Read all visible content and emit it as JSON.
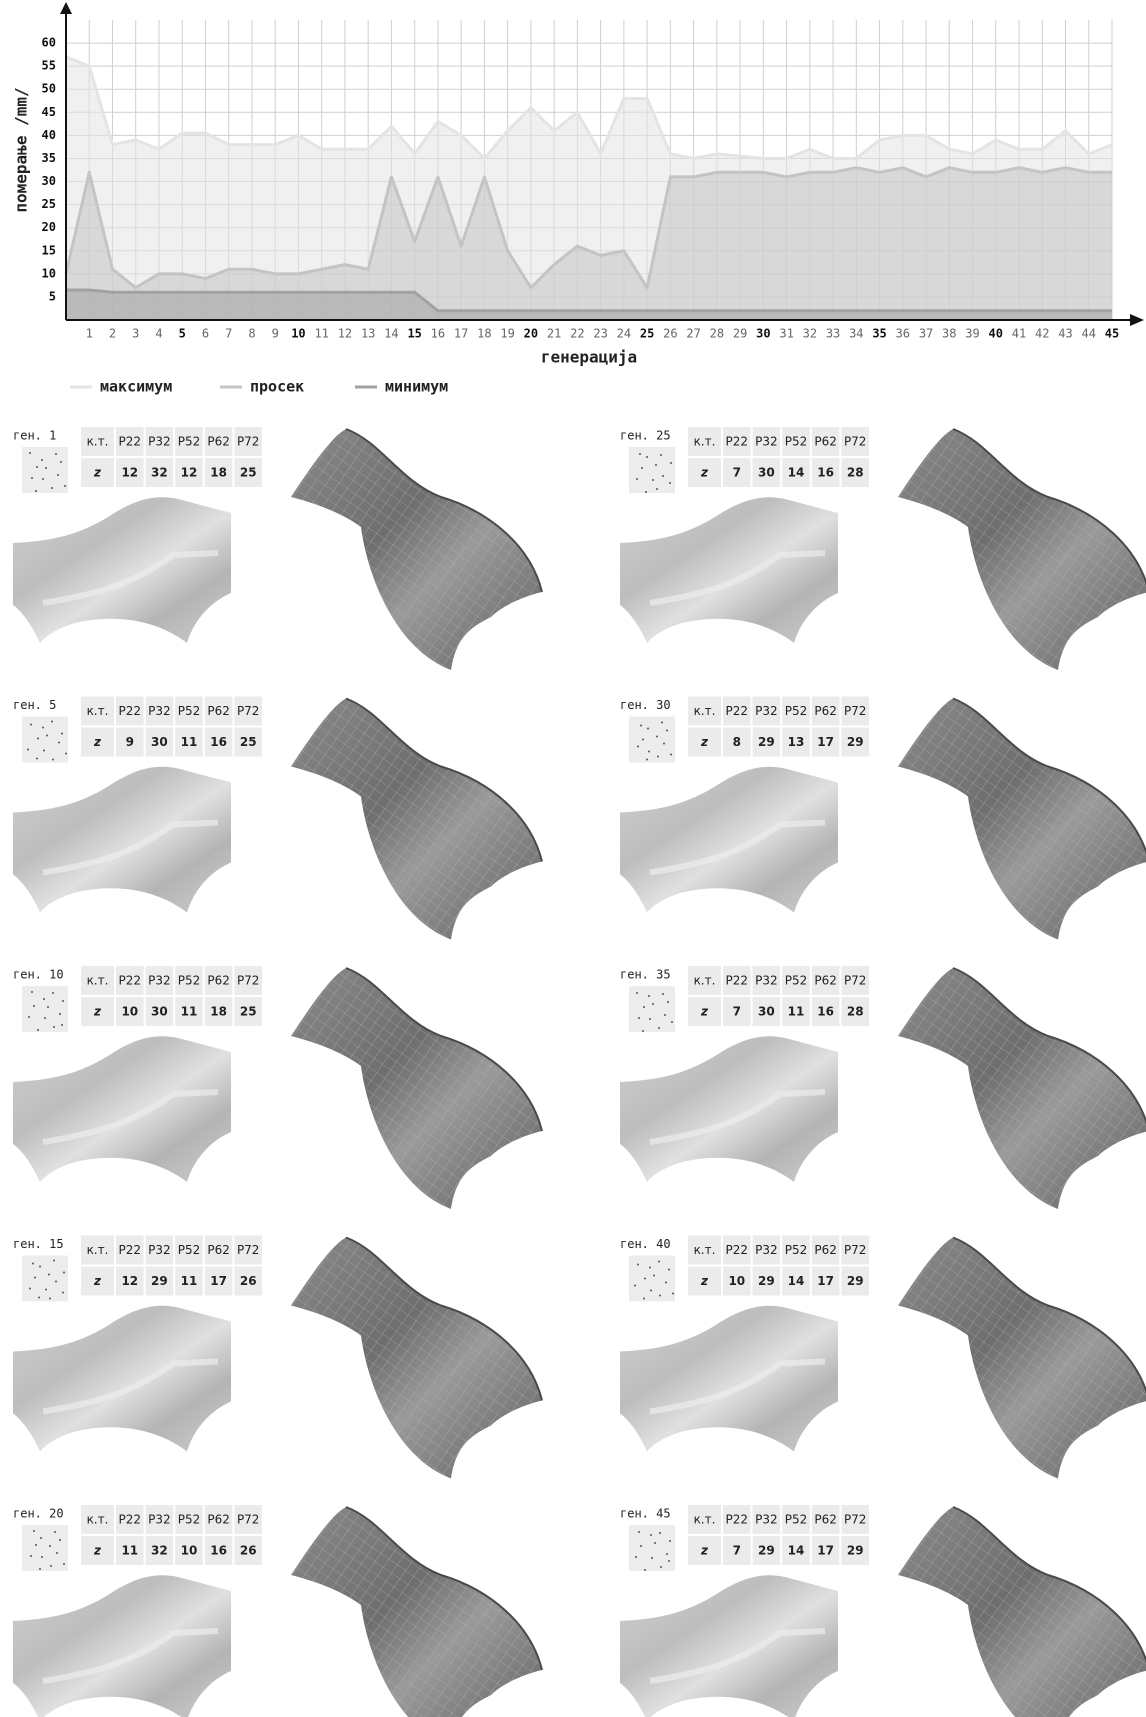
{
  "chart_data": {
    "type": "line",
    "x": [
      0,
      1,
      2,
      3,
      4,
      5,
      6,
      7,
      8,
      9,
      10,
      11,
      12,
      13,
      14,
      15,
      16,
      17,
      18,
      19,
      20,
      21,
      22,
      23,
      24,
      25,
      26,
      27,
      28,
      29,
      30,
      31,
      32,
      33,
      34,
      35,
      36,
      37,
      38,
      39,
      40,
      41,
      42,
      43,
      44,
      45
    ],
    "xlim": [
      0,
      45
    ],
    "xticks": [
      1,
      2,
      3,
      4,
      5,
      6,
      7,
      8,
      9,
      10,
      11,
      12,
      13,
      14,
      15,
      16,
      17,
      18,
      19,
      20,
      21,
      22,
      23,
      24,
      25,
      26,
      27,
      28,
      29,
      30,
      31,
      32,
      33,
      34,
      35,
      36,
      37,
      38,
      39,
      40,
      41,
      42,
      43,
      44,
      45
    ],
    "ylim": [
      0,
      65
    ],
    "yticks": [
      5,
      10,
      15,
      20,
      25,
      30,
      35,
      40,
      45,
      50,
      55,
      60
    ],
    "xlabel": "генерација",
    "ylabel": "померање /mm/",
    "grid": true,
    "series": [
      {
        "name": "максимум",
        "color": "#e4e4e4",
        "values": [
          57,
          55,
          38,
          39,
          37,
          40.5,
          40.5,
          38,
          38,
          38,
          40,
          37,
          37,
          37,
          42,
          36,
          43,
          40,
          35,
          41,
          46,
          41,
          45,
          36,
          48,
          48,
          36,
          35,
          36,
          35.5,
          35,
          35,
          37,
          35,
          35,
          39,
          40,
          40,
          37,
          36,
          39,
          37,
          37,
          41,
          36,
          38
        ]
      },
      {
        "name": "просек",
        "color": "#c4c4c4",
        "values": [
          10,
          32,
          11,
          7,
          10,
          10,
          9,
          11,
          11,
          10,
          10,
          11,
          12,
          11,
          31,
          17,
          31,
          16,
          31,
          15,
          7,
          12,
          16,
          14,
          15,
          7,
          31,
          31,
          32,
          32,
          32,
          31,
          32,
          32,
          33,
          32,
          33,
          31,
          33,
          32,
          32,
          33,
          32,
          33,
          32,
          32
        ]
      },
      {
        "name": "минимум",
        "color": "#a2a2a2",
        "values": [
          6.5,
          6.5,
          6,
          6,
          6,
          6,
          6,
          6,
          6,
          6,
          6,
          6,
          6,
          6,
          6,
          6,
          2,
          2,
          2,
          2,
          2,
          2,
          2,
          2,
          2,
          2,
          2,
          2,
          2,
          2,
          2,
          2,
          2,
          2,
          2,
          2,
          2,
          2,
          2,
          2,
          2,
          2,
          2,
          2,
          2,
          2
        ]
      }
    ]
  },
  "table_header": [
    "к.т.",
    "P22",
    "P32",
    "P52",
    "P62",
    "P72"
  ],
  "row_label": "z",
  "panels": [
    {
      "label": "ген. 1",
      "z": [
        12,
        32,
        12,
        18,
        25
      ]
    },
    {
      "label": "ген. 25",
      "z": [
        7,
        30,
        14,
        16,
        28
      ]
    },
    {
      "label": "ген. 5",
      "z": [
        9,
        30,
        11,
        16,
        25
      ]
    },
    {
      "label": "ген. 30",
      "z": [
        8,
        29,
        13,
        17,
        29
      ]
    },
    {
      "label": "ген. 10",
      "z": [
        10,
        30,
        11,
        18,
        25
      ]
    },
    {
      "label": "ген. 35",
      "z": [
        7,
        30,
        11,
        16,
        28
      ]
    },
    {
      "label": "ген. 15",
      "z": [
        12,
        29,
        11,
        17,
        26
      ]
    },
    {
      "label": "ген. 40",
      "z": [
        10,
        29,
        14,
        17,
        29
      ]
    },
    {
      "label": "ген. 20",
      "z": [
        11,
        32,
        10,
        16,
        26
      ]
    },
    {
      "label": "ген. 45",
      "z": [
        7,
        29,
        14,
        17,
        29
      ]
    }
  ]
}
